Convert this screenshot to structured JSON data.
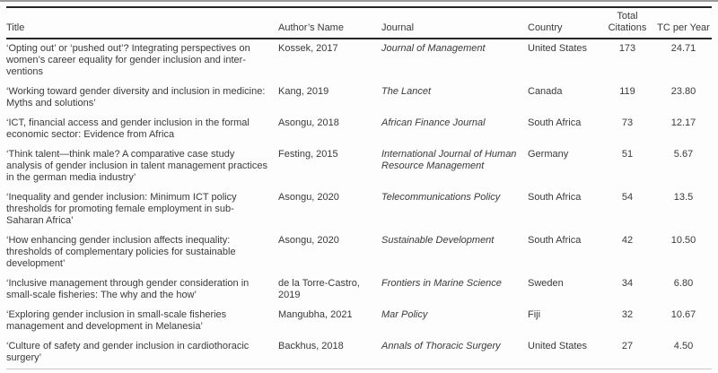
{
  "colors": {
    "background": "#fdfdfd",
    "rule_dark": "#262626",
    "hairline_gray": "#9a9a9a",
    "bottom_hairline": "#c9c9c9",
    "text": "#3a3a3a"
  },
  "table": {
    "columns": {
      "title": "Title",
      "author": "Author’s Name",
      "journal": "Journal",
      "country": "Country",
      "citations": "Total Citations",
      "tc_per_year": "TC per Year"
    },
    "rows": [
      {
        "title": "‘Opting out’ or ‘pushed out’? Integrating perspectives on women’s career equality for gender inclusion and inter-ventions",
        "author": "Kossek, 2017",
        "journal": "Journal of Management",
        "country": "United States",
        "citations": "173",
        "tc_per_year": "24.71"
      },
      {
        "title": "‘Working toward gender diversity and inclusion in medicine: Myths and solutions’",
        "author": "Kang, 2019",
        "journal": "The Lancet",
        "country": "Canada",
        "citations": "119",
        "tc_per_year": "23.80"
      },
      {
        "title": "‘ICT, financial access and gender inclusion in the formal economic sector: Evidence from Africa",
        "author": "Asongu, 2018",
        "journal": "African Finance Journal",
        "country": "South Africa",
        "citations": "73",
        "tc_per_year": "12.17"
      },
      {
        "title": "‘Think talent—think male? A comparative case study analysis of gender inclusion in talent management practices in the german media industry’",
        "author": "Festing, 2015",
        "journal": "International Journal of Human Resource Management",
        "country": "Germany",
        "citations": "51",
        "tc_per_year": "5.67"
      },
      {
        "title": "‘Inequality and gender inclusion: Minimum ICT policy thresholds for promoting female employment in sub-Saharan Africa’",
        "author": "Asongu, 2020",
        "journal": "Telecommunications Policy",
        "country": "South Africa",
        "citations": "54",
        "tc_per_year": "13.5"
      },
      {
        "title": "‘How enhancing gender inclusion affects inequality: thresholds of complementary policies for sustainable development’",
        "author": "Asongu, 2020",
        "journal": "Sustainable Development",
        "country": "South Africa",
        "citations": "42",
        "tc_per_year": "10.50"
      },
      {
        "title": "‘Inclusive management through gender consideration in small-scale fisheries: The why and the how’",
        "author": "de la Torre-Castro, 2019",
        "journal": "Frontiers in Marine Science",
        "country": "Sweden",
        "citations": "34",
        "tc_per_year": "6.80"
      },
      {
        "title": "‘Exploring gender inclusion in small-scale fisheries management and development in Melanesia’",
        "author": "Mangubha, 2021",
        "journal": "Mar Policy",
        "country": "Fiji",
        "citations": "32",
        "tc_per_year": "10.67"
      },
      {
        "title": "‘Culture of safety and gender inclusion in cardiothoracic surgery’",
        "author": "Backhus, 2018",
        "journal": "Annals of Thoracic Surgery",
        "country": "United States",
        "citations": "27",
        "tc_per_year": "4.50"
      }
    ]
  }
}
